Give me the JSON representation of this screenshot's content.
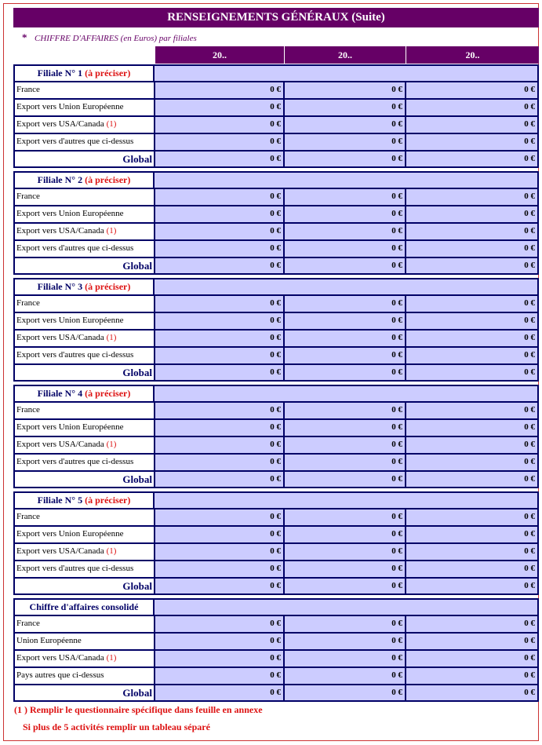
{
  "header": {
    "title": "RENSEIGNEMENTS GÉNÉRAUX (Suite)",
    "marker": "*",
    "subtitle": "CHIFFRE D'AFFAIRES (en Euros) par filiales",
    "columns": [
      "20..",
      "20..",
      "20.."
    ]
  },
  "sections": [
    {
      "title": "Filiale N° 1",
      "note": "(à préciser)",
      "rows": [
        {
          "label": "France",
          "values": [
            "0 €",
            "0 €",
            "0 €"
          ]
        },
        {
          "label": "Export vers Union Européenne",
          "values": [
            "0 €",
            "0 €",
            "0 €"
          ]
        },
        {
          "label": "Export vers USA/Canada",
          "note": "(1)",
          "values": [
            "0 €",
            "0 €",
            "0 €"
          ]
        },
        {
          "label": "Export vers d'autres que ci-dessus",
          "values": [
            "0 €",
            "0 €",
            "0 €"
          ]
        },
        {
          "label": "Global",
          "values": [
            "0 €",
            "0 €",
            "0 €"
          ]
        }
      ]
    },
    {
      "title": "Filiale N° 2",
      "note": "(à préciser)",
      "rows": [
        {
          "label": "France",
          "values": [
            "0 €",
            "0 €",
            "0 €"
          ]
        },
        {
          "label": "Export vers Union Européenne",
          "values": [
            "0 €",
            "0 €",
            "0 €"
          ]
        },
        {
          "label": "Export vers USA/Canada",
          "note": "(1)",
          "values": [
            "0 €",
            "0 €",
            "0 €"
          ]
        },
        {
          "label": "Export vers d'autres que ci-dessus",
          "values": [
            "0 €",
            "0 €",
            "0 €"
          ]
        },
        {
          "label": "Global",
          "values": [
            "0 €",
            "0 €",
            "0 €"
          ]
        }
      ]
    },
    {
      "title": "Filiale N° 3",
      "note": "(à préciser)",
      "rows": [
        {
          "label": "France",
          "values": [
            "0 €",
            "0 €",
            "0 €"
          ]
        },
        {
          "label": "Export vers Union Européenne",
          "values": [
            "0 €",
            "0 €",
            "0 €"
          ]
        },
        {
          "label": "Export vers USA/Canada",
          "note": "(1)",
          "values": [
            "0 €",
            "0 €",
            "0 €"
          ]
        },
        {
          "label": "Export vers d'autres que ci-dessus",
          "values": [
            "0 €",
            "0 €",
            "0 €"
          ]
        },
        {
          "label": "Global",
          "values": [
            "0 €",
            "0 €",
            "0 €"
          ]
        }
      ]
    },
    {
      "title": "Filiale N° 4",
      "note": "(à préciser)",
      "rows": [
        {
          "label": "France",
          "values": [
            "0 €",
            "0 €",
            "0 €"
          ]
        },
        {
          "label": "Export vers Union Européenne",
          "values": [
            "0 €",
            "0 €",
            "0 €"
          ]
        },
        {
          "label": "Export vers USA/Canada",
          "note": "(1)",
          "values": [
            "0 €",
            "0 €",
            "0 €"
          ]
        },
        {
          "label": "Export vers d'autres que ci-dessus",
          "values": [
            "0 €",
            "0 €",
            "0 €"
          ]
        },
        {
          "label": "Global",
          "values": [
            "0 €",
            "0 €",
            "0 €"
          ]
        }
      ]
    },
    {
      "title": "Filiale N° 5",
      "note": "(à préciser)",
      "rows": [
        {
          "label": "France",
          "values": [
            "0 €",
            "0 €",
            "0 €"
          ]
        },
        {
          "label": "Export vers Union Européenne",
          "values": [
            "0 €",
            "0 €",
            "0 €"
          ]
        },
        {
          "label": "Export vers USA/Canada",
          "note": "(1)",
          "values": [
            "0 €",
            "0 €",
            "0 €"
          ]
        },
        {
          "label": "Export vers d'autres que ci-dessus",
          "values": [
            "0 €",
            "0 €",
            "0 €"
          ]
        },
        {
          "label": "Global",
          "values": [
            "0 €",
            "0 €",
            "0 €"
          ]
        }
      ]
    },
    {
      "title": "Chiffre d'affaires consolidé",
      "rows": [
        {
          "label": "France",
          "values": [
            "0 €",
            "0 €",
            "0 €"
          ]
        },
        {
          "label": "Union Européenne",
          "values": [
            "0 €",
            "0 €",
            "0 €"
          ]
        },
        {
          "label": "Export vers USA/Canada",
          "note": "(1)",
          "values": [
            "0 €",
            "0 €",
            "0 €"
          ]
        },
        {
          "label": "Pays autres que ci-dessus",
          "values": [
            "0 €",
            "0 €",
            "0 €"
          ]
        },
        {
          "label": "Global",
          "values": [
            "0 €",
            "0 €",
            "0 €"
          ]
        }
      ]
    }
  ],
  "footnotes": [
    "(1 ) Remplir le questionnaire spécifique dans feuille en annexe",
    "Si plus de 5 activités remplir un tableau séparé"
  ]
}
